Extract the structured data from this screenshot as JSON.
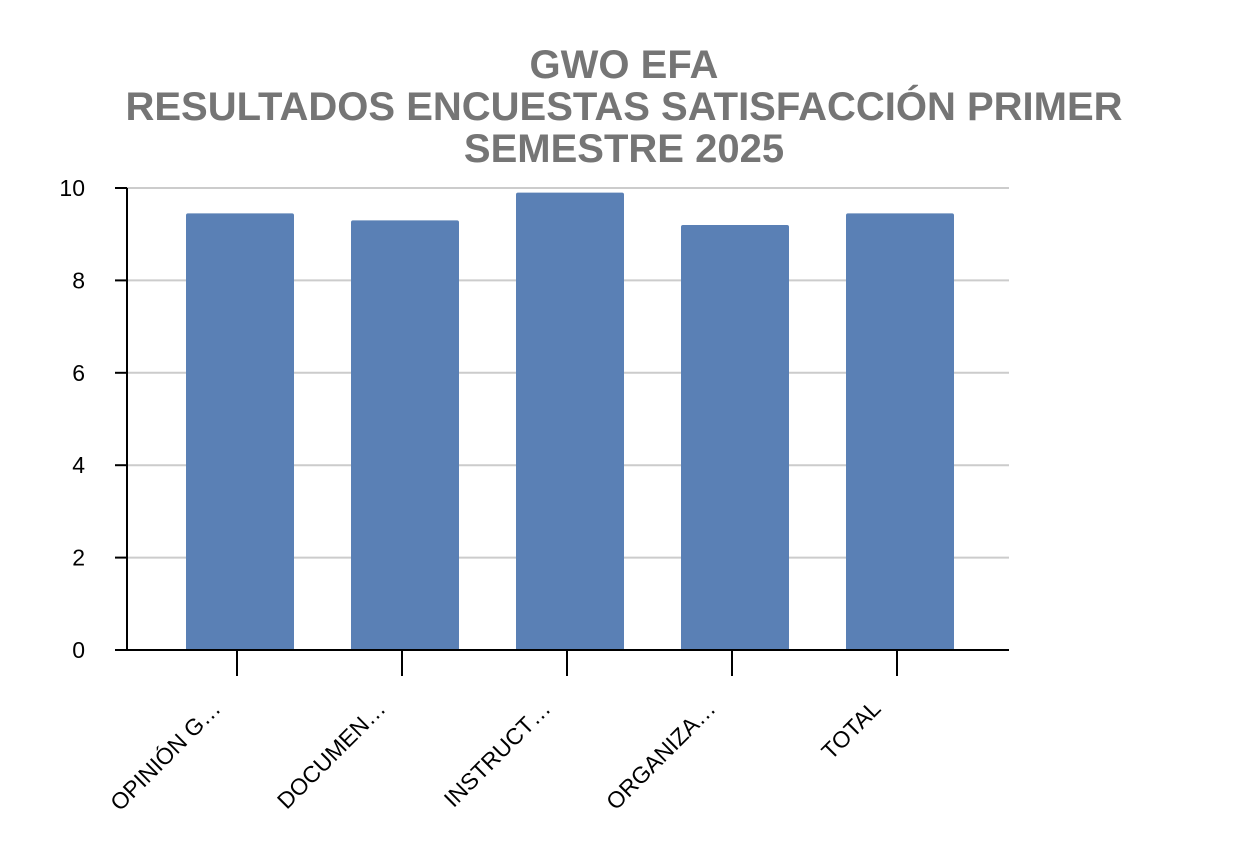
{
  "chart_data": {
    "type": "bar",
    "title_lines": [
      "GWO EFA",
      "RESULTADOS ENCUESTAS SATISFACCIÓN PRIMER",
      "SEMESTRE 2025"
    ],
    "categories": [
      "OPINIÓN G…",
      "DOCUMEN…",
      "INSTRUCT…",
      "ORGANIZA…",
      "TOTAL"
    ],
    "values": [
      9.45,
      9.3,
      9.9,
      9.2,
      9.45
    ],
    "ylim": [
      0,
      10
    ],
    "yticks": [
      "0",
      "2",
      "4",
      "6",
      "8",
      "10"
    ],
    "xlabel": "",
    "ylabel": "",
    "grid": true,
    "colors": {
      "bar": "#5a80b5",
      "title": "#757575",
      "grid": "#cccccc",
      "axis": "#000000"
    }
  }
}
